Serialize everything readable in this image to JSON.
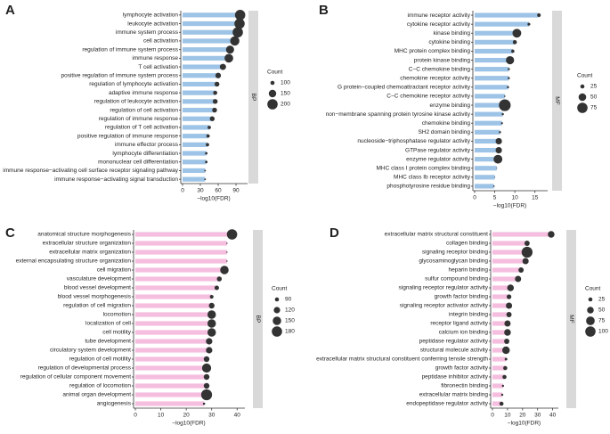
{
  "chart_data": [
    {
      "type": "lollipop",
      "panel": "A",
      "strip": "BP",
      "xlabel": "−log10(FDR)",
      "color": "#9dc3e6",
      "dot_color": "#333333",
      "categories": [
        "lymphocyte activation",
        "leukocyte activation",
        "immune system process",
        "cell activation",
        "regulation of immune system process",
        "immune response",
        "T cell activation",
        "positive regulation of immune system process",
        "regulation of lymphocyte activation",
        "adaptive immune response",
        "regulation of leukocyte activation",
        "regulation of cell activation",
        "regulation of immune response",
        "regulation of T cell activation",
        "positive regulation of immune response",
        "immune effector process",
        "lymphocyte differentiation",
        "mononuclear cell differentiation",
        "immune response−activating cell surface receptor signaling pathway",
        "immune response−activating signal transduction"
      ],
      "values": [
        97,
        96,
        93,
        88,
        80,
        78,
        68,
        60,
        58,
        55,
        55,
        54,
        50,
        45,
        43,
        42,
        40,
        40,
        38,
        38
      ],
      "counts": [
        200,
        200,
        200,
        180,
        160,
        170,
        130,
        120,
        110,
        100,
        110,
        110,
        110,
        90,
        90,
        90,
        80,
        80,
        70,
        70
      ],
      "xlim": [
        0,
        105
      ],
      "xticks": [
        0,
        30,
        60,
        90
      ],
      "size_legend": {
        "title": "Count",
        "values": [
          100,
          150,
          200
        ]
      }
    },
    {
      "type": "lollipop",
      "panel": "B",
      "strip": "MF",
      "xlabel": "−log10(FDR)",
      "color": "#9dc3e6",
      "dot_color": "#333333",
      "categories": [
        "immune receptor activity",
        "cytokine receptor activity",
        "kinase binding",
        "cytokine binding",
        "MHC protein complex binding",
        "protein kinase binding",
        "C−C chemokine binding",
        "chemokine receptor activity",
        "G protein−coupled chemoattractant receptor activity",
        "C−C chemokine receptor activity",
        "enzyme binding",
        "non−membrane spanning protein tyrosine kinase activity",
        "chemokine binding",
        "SH2 domain binding",
        "nucleoside−triphosphatase regulator activity",
        "GTPase regulator activity",
        "enzyme regulator activity",
        "MHC class I protein complex binding",
        "MHC class Ib receptor activity",
        "phosphotyrosine residue binding"
      ],
      "values": [
        16,
        13.5,
        10.5,
        10,
        9.5,
        8.8,
        8.5,
        8.5,
        8.3,
        7.5,
        7.5,
        7,
        6.8,
        6.3,
        6,
        6,
        5.8,
        5.5,
        5,
        4.8
      ],
      "counts": [
        22,
        18,
        60,
        25,
        20,
        55,
        15,
        15,
        15,
        12,
        90,
        15,
        14,
        15,
        40,
        40,
        60,
        10,
        10,
        12
      ],
      "xlim": [
        0,
        17.5
      ],
      "xticks": [
        0,
        5,
        10,
        15
      ],
      "size_legend": {
        "title": "Count",
        "values": [
          25,
          50,
          75
        ]
      }
    },
    {
      "type": "lollipop",
      "panel": "C",
      "strip": "BP",
      "xlabel": "−log10(FDR)",
      "color": "#f5bedf",
      "dot_color": "#333333",
      "categories": [
        "anatomical structure morphogenesis",
        "extracellular structure organization",
        "extracellular matrix organization",
        "external encapsulating structure organization",
        "cell migration",
        "vasculature development",
        "blood vessel development",
        "blood vessel morphogenesis",
        "regulation of cell migration",
        "locomotion",
        "localization of cell",
        "cell motility",
        "tube development",
        "circulatory system development",
        "regulation of cell motility",
        "regulation of developmental process",
        "regulation of cellular component movement",
        "regulation of locomotion",
        "animal organ development",
        "angiogenesis"
      ],
      "values": [
        38,
        36,
        36,
        36,
        35,
        33,
        32,
        30,
        30,
        30,
        30,
        30,
        29,
        29,
        28,
        28,
        28,
        28,
        28,
        27
      ],
      "counts": [
        180,
        60,
        60,
        60,
        150,
        100,
        95,
        85,
        110,
        150,
        150,
        150,
        120,
        120,
        110,
        160,
        110,
        110,
        190,
        70
      ],
      "xlim": [
        0,
        42
      ],
      "xticks": [
        0,
        10,
        20,
        30,
        40
      ],
      "size_legend": {
        "title": "Count",
        "values": [
          90,
          120,
          150,
          180
        ]
      }
    },
    {
      "type": "lollipop",
      "panel": "D",
      "strip": "MF",
      "xlabel": "−log10(FDR)",
      "color": "#f5bedf",
      "dot_color": "#333333",
      "categories": [
        "extracellular matrix structural constituent",
        "collagen binding",
        "signaling receptor binding",
        "glycosaminoglycan binding",
        "heparin binding",
        "sulfur compound binding",
        "signaling receptor regulator activity",
        "growth factor binding",
        "signaling receptor activator activity",
        "integrin binding",
        "receptor ligand activity",
        "calcium ion binding",
        "peptidase regulator activity",
        "structural molecule activity",
        "extracellular matrix structural constituent conferring tensile strength",
        "growth factor activity",
        "peptidase inhibitor activity",
        "fibronectin binding",
        "extracellular matrix binding",
        "endopeptidase regulator activity"
      ],
      "values": [
        39,
        23,
        23,
        22,
        19,
        17,
        12,
        11,
        11,
        11,
        10,
        10,
        9.5,
        9,
        9,
        8.5,
        8,
        7,
        6.5,
        6
      ],
      "counts": [
        50,
        35,
        110,
        45,
        35,
        45,
        50,
        30,
        45,
        35,
        45,
        50,
        35,
        60,
        15,
        25,
        25,
        12,
        12,
        25
      ],
      "xlim": [
        0,
        42
      ],
      "xticks": [
        0,
        10,
        20,
        30,
        40
      ],
      "size_legend": {
        "title": "Count",
        "values": [
          25,
          50,
          75,
          100
        ]
      }
    }
  ]
}
